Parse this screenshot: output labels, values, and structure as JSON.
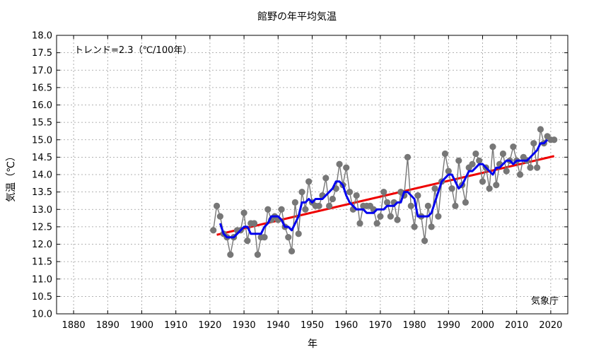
{
  "chart_data": {
    "type": "line",
    "title": "館野の年平均気温",
    "xlabel": "年",
    "ylabel": "気温（℃）",
    "annotation": "トレンド=2.3（℃/100年）",
    "credit": "気象庁",
    "xlim": [
      1875,
      2025
    ],
    "ylim": [
      10.0,
      18.0
    ],
    "xticks": [
      1880,
      1890,
      1900,
      1910,
      1920,
      1930,
      1940,
      1950,
      1960,
      1970,
      1980,
      1990,
      2000,
      2010,
      2020
    ],
    "yticks": [
      10.0,
      10.5,
      11.0,
      11.5,
      12.0,
      12.5,
      13.0,
      13.5,
      14.0,
      14.5,
      15.0,
      15.5,
      16.0,
      16.5,
      17.0,
      17.5,
      18.0
    ],
    "grid": true,
    "series": [
      {
        "kind": "annual",
        "color": "#777777",
        "x": [
          1921,
          1922,
          1923,
          1924,
          1925,
          1926,
          1927,
          1928,
          1929,
          1930,
          1931,
          1932,
          1933,
          1934,
          1935,
          1936,
          1937,
          1938,
          1939,
          1940,
          1941,
          1942,
          1943,
          1944,
          1945,
          1946,
          1947,
          1948,
          1949,
          1950,
          1951,
          1952,
          1953,
          1954,
          1955,
          1956,
          1957,
          1958,
          1959,
          1960,
          1961,
          1962,
          1963,
          1964,
          1965,
          1966,
          1967,
          1968,
          1969,
          1970,
          1971,
          1972,
          1973,
          1974,
          1975,
          1976,
          1977,
          1978,
          1979,
          1980,
          1981,
          1982,
          1983,
          1984,
          1985,
          1986,
          1987,
          1988,
          1989,
          1990,
          1991,
          1992,
          1993,
          1994,
          1995,
          1996,
          1997,
          1998,
          1999,
          2000,
          2001,
          2002,
          2003,
          2004,
          2005,
          2006,
          2007,
          2008,
          2009,
          2010,
          2011,
          2012,
          2013,
          2014,
          2015,
          2016,
          2017,
          2018,
          2019,
          2020,
          2021
        ],
        "y": [
          12.4,
          13.1,
          12.8,
          12.3,
          12.2,
          11.7,
          12.2,
          12.4,
          12.4,
          12.9,
          12.1,
          12.6,
          12.6,
          11.7,
          12.2,
          12.2,
          13.0,
          12.7,
          12.8,
          12.7,
          13.0,
          12.5,
          12.2,
          11.8,
          13.2,
          12.3,
          13.5,
          13.0,
          13.8,
          13.2,
          13.1,
          13.1,
          13.4,
          13.9,
          13.1,
          13.3,
          13.6,
          14.3,
          13.7,
          14.2,
          13.5,
          13.0,
          13.4,
          12.6,
          13.1,
          13.1,
          13.1,
          13.0,
          12.6,
          12.8,
          13.5,
          13.2,
          12.8,
          13.2,
          12.7,
          13.5,
          13.4,
          14.5,
          13.1,
          12.5,
          13.4,
          12.8,
          12.1,
          13.1,
          12.5,
          13.6,
          12.8,
          13.8,
          14.6,
          14.1,
          13.6,
          13.1,
          14.4,
          13.7,
          13.2,
          14.2,
          14.3,
          14.6,
          14.4,
          13.8,
          14.2,
          13.6,
          14.8,
          13.7,
          14.3,
          14.6,
          14.1,
          14.4,
          14.8,
          14.4,
          14.0,
          14.5,
          14.4,
          14.2,
          14.9,
          14.2,
          15.3,
          14.9,
          15.1,
          15.0,
          15.0
        ]
      },
      {
        "kind": "5-year running mean",
        "color": "#0000ee",
        "x": [
          1923,
          1924,
          1925,
          1926,
          1927,
          1928,
          1929,
          1930,
          1931,
          1932,
          1933,
          1934,
          1935,
          1936,
          1937,
          1938,
          1939,
          1940,
          1941,
          1942,
          1943,
          1944,
          1945,
          1946,
          1947,
          1948,
          1949,
          1950,
          1951,
          1952,
          1953,
          1954,
          1955,
          1956,
          1957,
          1958,
          1959,
          1960,
          1961,
          1962,
          1963,
          1964,
          1965,
          1966,
          1967,
          1968,
          1969,
          1970,
          1971,
          1972,
          1973,
          1974,
          1975,
          1976,
          1977,
          1978,
          1979,
          1980,
          1981,
          1982,
          1983,
          1984,
          1985,
          1986,
          1987,
          1988,
          1989,
          1990,
          1991,
          1992,
          1993,
          1994,
          1995,
          1996,
          1997,
          1998,
          1999,
          2000,
          2001,
          2002,
          2003,
          2004,
          2005,
          2006,
          2007,
          2008,
          2009,
          2010,
          2011,
          2012,
          2013,
          2014,
          2015,
          2016,
          2017,
          2018,
          2019
        ],
        "y": [
          12.6,
          12.3,
          12.2,
          12.2,
          12.2,
          12.3,
          12.4,
          12.5,
          12.5,
          12.3,
          12.3,
          12.3,
          12.3,
          12.5,
          12.6,
          12.8,
          12.8,
          12.8,
          12.7,
          12.5,
          12.5,
          12.4,
          12.6,
          12.8,
          13.2,
          13.2,
          13.3,
          13.2,
          13.3,
          13.3,
          13.3,
          13.4,
          13.5,
          13.6,
          13.8,
          13.8,
          13.7,
          13.4,
          13.2,
          13.1,
          13.0,
          13.0,
          13.0,
          12.9,
          12.9,
          12.9,
          13.0,
          13.0,
          13.0,
          13.1,
          13.1,
          13.1,
          13.2,
          13.2,
          13.5,
          13.5,
          13.4,
          13.3,
          12.8,
          12.8,
          12.8,
          12.8,
          12.9,
          13.2,
          13.5,
          13.8,
          13.9,
          14.0,
          14.0,
          13.8,
          13.6,
          13.7,
          13.9,
          14.1,
          14.1,
          14.2,
          14.3,
          14.3,
          14.2,
          14.1,
          14.0,
          14.2,
          14.2,
          14.3,
          14.4,
          14.4,
          14.3,
          14.4,
          14.4,
          14.4,
          14.4,
          14.5,
          14.6,
          14.7,
          14.9,
          14.9,
          15.0
        ]
      },
      {
        "kind": "trend",
        "color": "#ee0000",
        "x": [
          1922,
          2021
        ],
        "y": [
          12.27,
          14.53
        ]
      }
    ]
  }
}
